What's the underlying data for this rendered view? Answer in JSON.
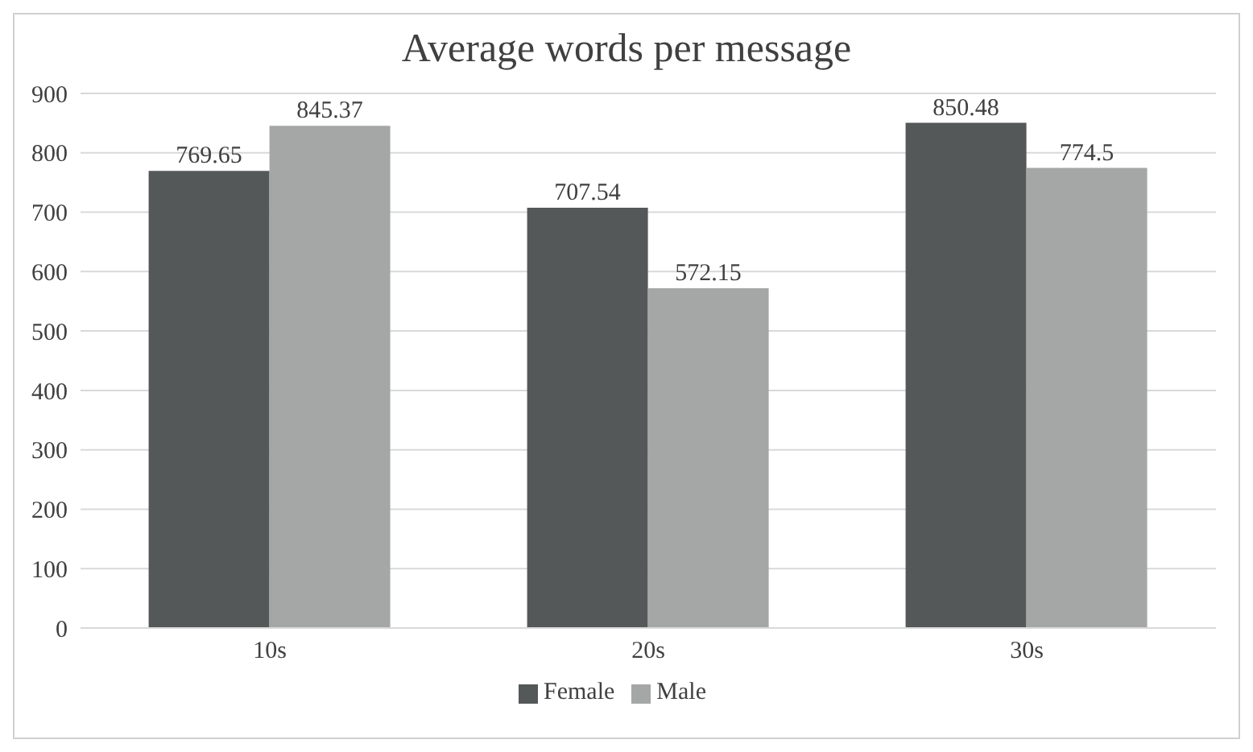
{
  "chart_data": {
    "type": "bar",
    "title": "Average words per message",
    "categories": [
      "10s",
      "20s",
      "30s"
    ],
    "series": [
      {
        "name": "Female",
        "color": "#545858",
        "values": [
          769.65,
          707.54,
          850.48
        ]
      },
      {
        "name": "Male",
        "color": "#a5a7a7",
        "values": [
          845.37,
          572.15,
          774.5
        ]
      }
    ],
    "ylim": [
      0,
      900
    ],
    "yticks": [
      0,
      100,
      200,
      300,
      400,
      500,
      600,
      700,
      800,
      900
    ],
    "grid": "y",
    "legend": "bottom",
    "data_labels": true
  }
}
